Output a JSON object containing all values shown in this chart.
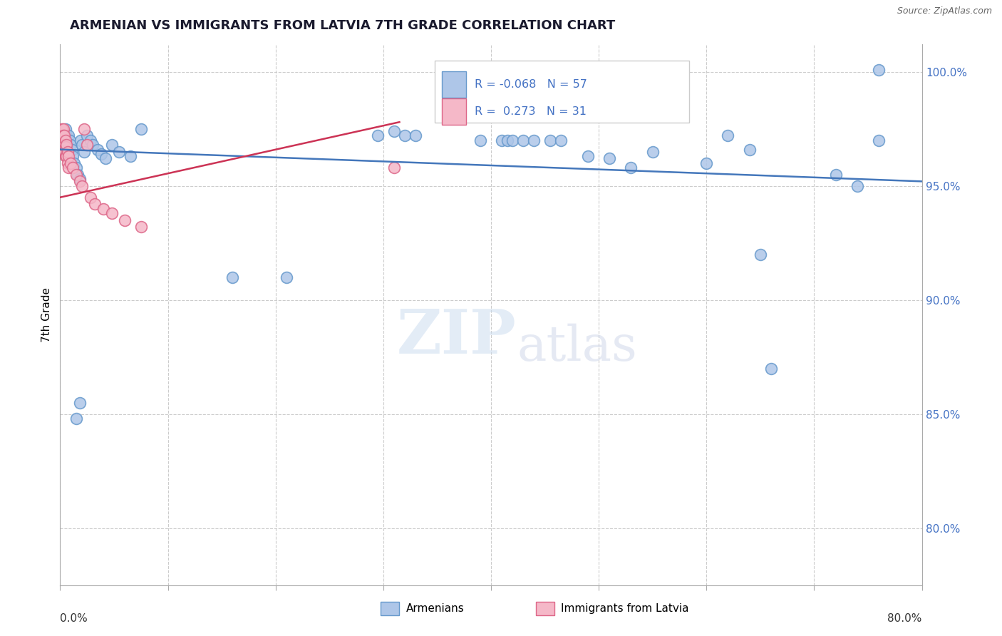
{
  "title": "ARMENIAN VS IMMIGRANTS FROM LATVIA 7TH GRADE CORRELATION CHART",
  "source": "Source: ZipAtlas.com",
  "ylabel": "7th Grade",
  "y_axis_labels": [
    "80.0%",
    "85.0%",
    "90.0%",
    "95.0%",
    "100.0%"
  ],
  "y_axis_values": [
    0.8,
    0.85,
    0.9,
    0.95,
    1.0
  ],
  "x_min": 0.0,
  "x_max": 0.8,
  "y_min": 0.775,
  "y_max": 1.012,
  "legend_blue_r": "-0.068",
  "legend_blue_n": "57",
  "legend_pink_r": "0.273",
  "legend_pink_n": "31",
  "blue_color": "#aec6e8",
  "pink_color": "#f5b8c8",
  "blue_edge": "#6699cc",
  "pink_edge": "#dd6688",
  "trend_blue_color": "#4477bb",
  "trend_pink_color": "#cc3355",
  "blue_x": [
    0.004,
    0.005,
    0.005,
    0.006,
    0.007,
    0.007,
    0.008,
    0.009,
    0.01,
    0.011,
    0.012,
    0.013,
    0.015,
    0.016,
    0.018,
    0.019,
    0.02,
    0.022,
    0.025,
    0.028,
    0.03,
    0.035,
    0.038,
    0.042,
    0.048,
    0.055,
    0.065,
    0.075,
    0.295,
    0.31,
    0.32,
    0.33,
    0.39,
    0.41,
    0.415,
    0.42,
    0.43,
    0.44,
    0.455,
    0.465,
    0.49,
    0.51,
    0.53,
    0.55,
    0.6,
    0.62,
    0.64,
    0.65,
    0.66,
    0.72,
    0.74,
    0.76,
    0.015,
    0.018,
    0.16,
    0.21,
    0.76
  ],
  "blue_y": [
    0.972,
    0.975,
    0.97,
    0.972,
    0.97,
    0.968,
    0.972,
    0.97,
    0.968,
    0.966,
    0.963,
    0.96,
    0.958,
    0.955,
    0.953,
    0.97,
    0.968,
    0.965,
    0.972,
    0.97,
    0.968,
    0.966,
    0.964,
    0.962,
    0.968,
    0.965,
    0.963,
    0.975,
    0.972,
    0.974,
    0.972,
    0.972,
    0.97,
    0.97,
    0.97,
    0.97,
    0.97,
    0.97,
    0.97,
    0.97,
    0.963,
    0.962,
    0.958,
    0.965,
    0.96,
    0.972,
    0.966,
    0.92,
    0.87,
    0.955,
    0.95,
    0.97,
    0.848,
    0.855,
    0.91,
    0.91,
    1.001
  ],
  "pink_x": [
    0.002,
    0.002,
    0.003,
    0.003,
    0.003,
    0.004,
    0.004,
    0.004,
    0.005,
    0.005,
    0.005,
    0.006,
    0.006,
    0.007,
    0.007,
    0.008,
    0.008,
    0.01,
    0.012,
    0.015,
    0.018,
    0.02,
    0.022,
    0.025,
    0.028,
    0.032,
    0.04,
    0.048,
    0.06,
    0.075,
    0.31
  ],
  "pink_y": [
    0.975,
    0.972,
    0.975,
    0.972,
    0.968,
    0.972,
    0.968,
    0.965,
    0.97,
    0.967,
    0.963,
    0.968,
    0.963,
    0.965,
    0.96,
    0.963,
    0.958,
    0.96,
    0.958,
    0.955,
    0.952,
    0.95,
    0.975,
    0.968,
    0.945,
    0.942,
    0.94,
    0.938,
    0.935,
    0.932,
    0.958
  ],
  "blue_trend_x": [
    0.0,
    0.8
  ],
  "blue_trend_y": [
    0.966,
    0.952
  ],
  "pink_trend_x": [
    0.0,
    0.315
  ],
  "pink_trend_y": [
    0.945,
    0.978
  ]
}
